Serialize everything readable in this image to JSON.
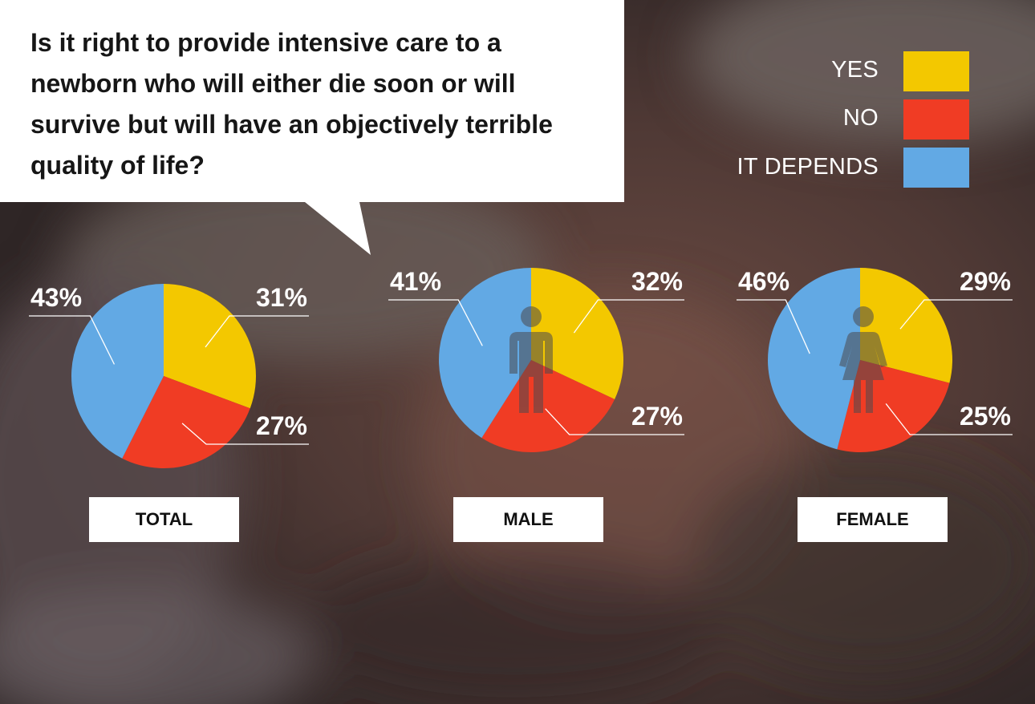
{
  "question": "Is it right to provide intensive care to a newborn who will either die soon or will survive but will have an objectively terrible quality of life?",
  "legend": [
    {
      "label": "YES",
      "color": "#f3c800"
    },
    {
      "label": "NO",
      "color": "#f03c24"
    },
    {
      "label": "IT DEPENDS",
      "color": "#62a9e4"
    }
  ],
  "icons": [
    "male-person-icon",
    "female-person-icon"
  ],
  "chart_data": [
    {
      "type": "pie",
      "label": "TOTAL",
      "slices": [
        {
          "category": "YES",
          "value": 31,
          "label": "31%"
        },
        {
          "category": "NO",
          "value": 27,
          "label": "27%"
        },
        {
          "category": "IT DEPENDS",
          "value": 43,
          "label": "43%"
        }
      ]
    },
    {
      "type": "pie",
      "label": "MALE",
      "slices": [
        {
          "category": "YES",
          "value": 32,
          "label": "32%"
        },
        {
          "category": "NO",
          "value": 27,
          "label": "27%"
        },
        {
          "category": "IT DEPENDS",
          "value": 41,
          "label": "41%"
        }
      ]
    },
    {
      "type": "pie",
      "label": "FEMALE",
      "slices": [
        {
          "category": "YES",
          "value": 29,
          "label": "29%"
        },
        {
          "category": "NO",
          "value": 25,
          "label": "25%"
        },
        {
          "category": "IT DEPENDS",
          "value": 46,
          "label": "46%"
        }
      ]
    }
  ]
}
